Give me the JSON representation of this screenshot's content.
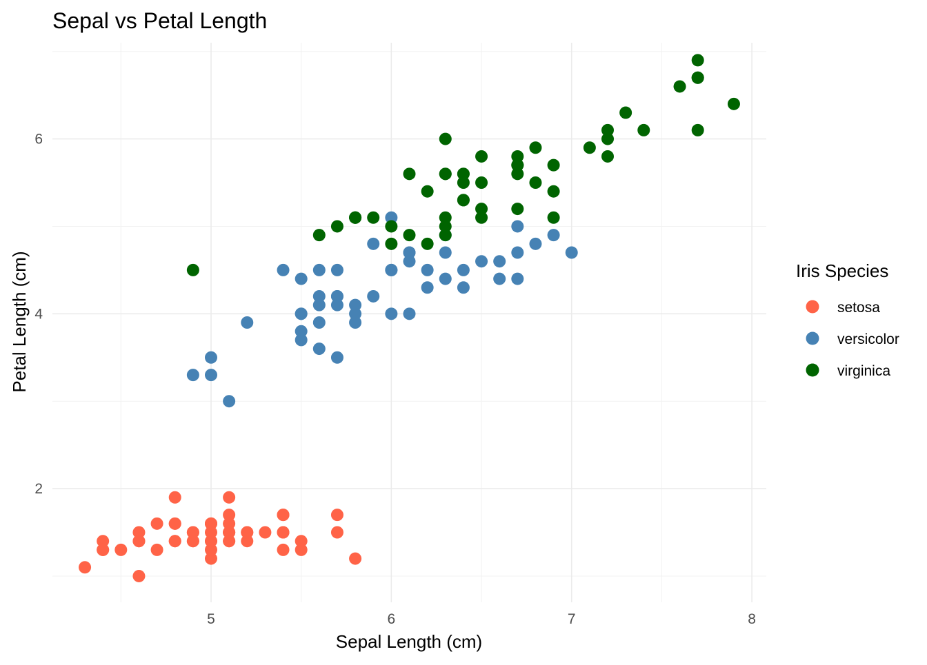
{
  "chart_data": {
    "type": "scatter",
    "title": "Sepal vs Petal Length",
    "xlabel": "Sepal Length (cm)",
    "ylabel": "Petal Length (cm)",
    "xlim": [
      4.12,
      8.08
    ],
    "ylim": [
      0.7,
      7.1
    ],
    "x_ticks": [
      "5",
      "6",
      "7",
      "8"
    ],
    "y_ticks": [
      "2",
      "4",
      "6"
    ],
    "grid": true,
    "legend": {
      "title": "Iris Species",
      "placement": "right"
    },
    "series": [
      {
        "name": "setosa",
        "color": "#FF6347",
        "points": [
          [
            5.1,
            1.4
          ],
          [
            4.9,
            1.4
          ],
          [
            4.7,
            1.3
          ],
          [
            4.6,
            1.5
          ],
          [
            5.0,
            1.4
          ],
          [
            5.4,
            1.7
          ],
          [
            4.6,
            1.4
          ],
          [
            5.0,
            1.5
          ],
          [
            4.4,
            1.4
          ],
          [
            4.9,
            1.5
          ],
          [
            5.4,
            1.5
          ],
          [
            4.8,
            1.6
          ],
          [
            4.8,
            1.4
          ],
          [
            4.3,
            1.1
          ],
          [
            5.8,
            1.2
          ],
          [
            5.7,
            1.5
          ],
          [
            5.4,
            1.3
          ],
          [
            5.1,
            1.4
          ],
          [
            5.7,
            1.7
          ],
          [
            5.1,
            1.5
          ],
          [
            5.4,
            1.7
          ],
          [
            5.1,
            1.5
          ],
          [
            4.6,
            1.0
          ],
          [
            5.1,
            1.7
          ],
          [
            4.8,
            1.9
          ],
          [
            5.0,
            1.6
          ],
          [
            5.0,
            1.6
          ],
          [
            5.2,
            1.5
          ],
          [
            5.2,
            1.4
          ],
          [
            4.7,
            1.6
          ],
          [
            4.8,
            1.6
          ],
          [
            5.4,
            1.5
          ],
          [
            5.2,
            1.5
          ],
          [
            5.5,
            1.4
          ],
          [
            4.9,
            1.5
          ],
          [
            5.0,
            1.2
          ],
          [
            5.5,
            1.3
          ],
          [
            4.9,
            1.4
          ],
          [
            4.4,
            1.3
          ],
          [
            5.1,
            1.5
          ],
          [
            5.0,
            1.3
          ],
          [
            4.5,
            1.3
          ],
          [
            4.4,
            1.3
          ],
          [
            5.0,
            1.6
          ],
          [
            5.1,
            1.9
          ],
          [
            4.8,
            1.4
          ],
          [
            5.1,
            1.6
          ],
          [
            4.6,
            1.4
          ],
          [
            5.3,
            1.5
          ],
          [
            5.0,
            1.4
          ]
        ]
      },
      {
        "name": "versicolor",
        "color": "#4682B4",
        "points": [
          [
            7.0,
            4.7
          ],
          [
            6.4,
            4.5
          ],
          [
            6.9,
            4.9
          ],
          [
            5.5,
            4.0
          ],
          [
            6.5,
            4.6
          ],
          [
            5.7,
            4.5
          ],
          [
            6.3,
            4.7
          ],
          [
            4.9,
            3.3
          ],
          [
            6.6,
            4.6
          ],
          [
            5.2,
            3.9
          ],
          [
            5.0,
            3.5
          ],
          [
            5.9,
            4.2
          ],
          [
            6.0,
            4.0
          ],
          [
            6.1,
            4.7
          ],
          [
            5.6,
            3.6
          ],
          [
            6.7,
            4.4
          ],
          [
            5.6,
            4.5
          ],
          [
            5.8,
            4.1
          ],
          [
            6.2,
            4.5
          ],
          [
            5.6,
            3.9
          ],
          [
            5.9,
            4.8
          ],
          [
            6.1,
            4.0
          ],
          [
            6.3,
            4.9
          ],
          [
            6.1,
            4.7
          ],
          [
            6.4,
            4.3
          ],
          [
            6.6,
            4.4
          ],
          [
            6.8,
            4.8
          ],
          [
            6.7,
            5.0
          ],
          [
            6.0,
            4.5
          ],
          [
            5.7,
            3.5
          ],
          [
            5.5,
            3.8
          ],
          [
            5.5,
            3.7
          ],
          [
            5.8,
            3.9
          ],
          [
            6.0,
            5.1
          ],
          [
            5.4,
            4.5
          ],
          [
            6.0,
            4.5
          ],
          [
            6.7,
            4.7
          ],
          [
            6.3,
            4.4
          ],
          [
            5.6,
            4.1
          ],
          [
            5.5,
            4.0
          ],
          [
            5.5,
            4.4
          ],
          [
            6.1,
            4.6
          ],
          [
            5.8,
            4.0
          ],
          [
            5.0,
            3.3
          ],
          [
            5.6,
            4.2
          ],
          [
            5.7,
            4.2
          ],
          [
            5.7,
            4.2
          ],
          [
            6.2,
            4.3
          ],
          [
            5.1,
            3.0
          ],
          [
            5.7,
            4.1
          ]
        ]
      },
      {
        "name": "virginica",
        "color": "#006400",
        "points": [
          [
            6.3,
            6.0
          ],
          [
            5.8,
            5.1
          ],
          [
            7.1,
            5.9
          ],
          [
            6.3,
            5.6
          ],
          [
            6.5,
            5.8
          ],
          [
            7.6,
            6.6
          ],
          [
            4.9,
            4.5
          ],
          [
            7.3,
            6.3
          ],
          [
            6.7,
            5.8
          ],
          [
            7.2,
            6.1
          ],
          [
            6.5,
            5.1
          ],
          [
            6.4,
            5.3
          ],
          [
            6.8,
            5.5
          ],
          [
            5.7,
            5.0
          ],
          [
            5.8,
            5.1
          ],
          [
            6.4,
            5.3
          ],
          [
            6.5,
            5.5
          ],
          [
            7.7,
            6.7
          ],
          [
            7.7,
            6.9
          ],
          [
            6.0,
            5.0
          ],
          [
            6.9,
            5.7
          ],
          [
            5.6,
            4.9
          ],
          [
            7.7,
            6.7
          ],
          [
            6.3,
            4.9
          ],
          [
            6.7,
            5.7
          ],
          [
            7.2,
            6.0
          ],
          [
            6.2,
            4.8
          ],
          [
            6.1,
            4.9
          ],
          [
            6.4,
            5.6
          ],
          [
            7.2,
            5.8
          ],
          [
            7.4,
            6.1
          ],
          [
            7.9,
            6.4
          ],
          [
            6.4,
            5.6
          ],
          [
            6.3,
            5.1
          ],
          [
            6.1,
            5.6
          ],
          [
            7.7,
            6.1
          ],
          [
            6.3,
            5.6
          ],
          [
            6.4,
            5.5
          ],
          [
            6.0,
            4.8
          ],
          [
            6.9,
            5.4
          ],
          [
            6.7,
            5.6
          ],
          [
            6.9,
            5.1
          ],
          [
            5.8,
            5.1
          ],
          [
            6.8,
            5.9
          ],
          [
            6.7,
            5.7
          ],
          [
            6.7,
            5.2
          ],
          [
            6.3,
            5.0
          ],
          [
            6.5,
            5.2
          ],
          [
            6.2,
            5.4
          ],
          [
            5.9,
            5.1
          ]
        ]
      }
    ]
  }
}
